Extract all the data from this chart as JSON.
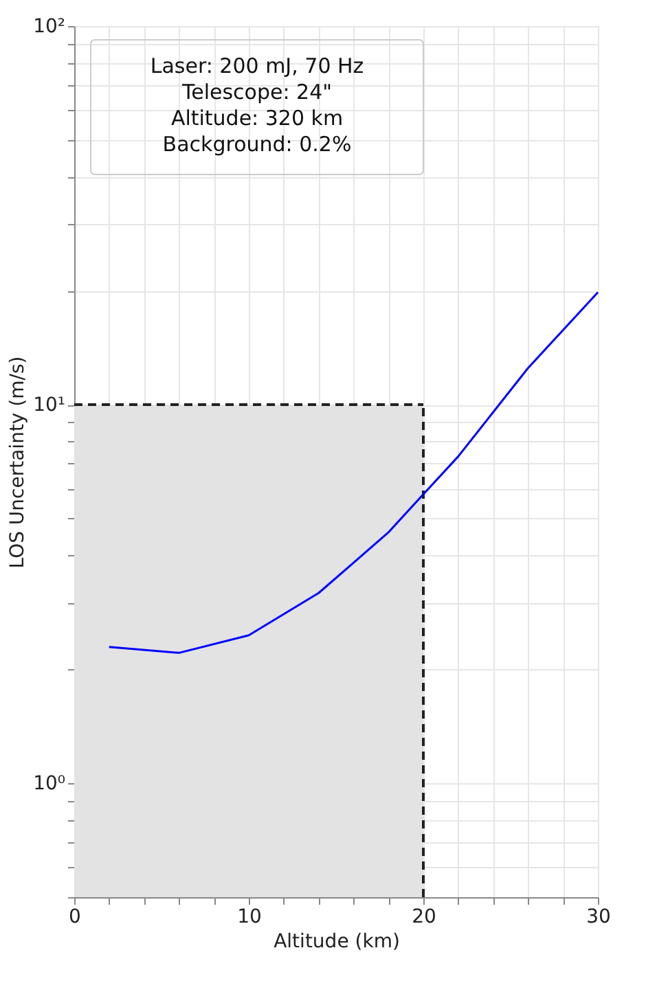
{
  "chart_data": {
    "type": "line",
    "xlabel": "Altitude (km)",
    "ylabel": "LOS Uncertainty (m/s)",
    "x": [
      2,
      6,
      10,
      14,
      18,
      20,
      22,
      26,
      30
    ],
    "series": [
      {
        "color": "#0000ff",
        "values": [
          2.29,
          2.21,
          2.46,
          3.18,
          4.6,
          5.8,
          7.3,
          12.5,
          19.8
        ]
      }
    ],
    "log": "y",
    "xlim": [
      0,
      30
    ],
    "ylim": [
      0.5,
      100
    ],
    "xticks": [
      0,
      {
        "value": 2,
        "label": null
      },
      {
        "value": 4,
        "label": null
      },
      {
        "value": 6,
        "label": null
      },
      {
        "value": 8,
        "label": null
      },
      10,
      {
        "value": 12,
        "label": null
      },
      {
        "value": 14,
        "label": null
      },
      {
        "value": 16,
        "label": null
      },
      {
        "value": 18,
        "label": null
      },
      20,
      {
        "value": 22,
        "label": null
      },
      {
        "value": 24,
        "label": null
      },
      {
        "value": 26,
        "label": null
      },
      {
        "value": 28,
        "label": null
      },
      30
    ],
    "yticks": [
      {
        "value": 0.5,
        "label": null
      },
      {
        "value": 0.6,
        "label": null
      },
      {
        "value": 0.7,
        "label": null
      },
      {
        "value": 0.8,
        "label": null
      },
      {
        "value": 0.9,
        "label": null
      },
      {
        "value": 1,
        "label": "10⁰"
      },
      {
        "value": 2,
        "label": null
      },
      {
        "value": 3,
        "label": null
      },
      {
        "value": 4,
        "label": null
      },
      {
        "value": 5,
        "label": null
      },
      {
        "value": 6,
        "label": null
      },
      {
        "value": 7,
        "label": null
      },
      {
        "value": 8,
        "label": null
      },
      {
        "value": 9,
        "label": null
      },
      {
        "value": 10,
        "label": "10¹"
      },
      {
        "value": 20,
        "label": null
      },
      {
        "value": 30,
        "label": null
      },
      {
        "value": 40,
        "label": null
      },
      {
        "value": 50,
        "label": null
      },
      {
        "value": 60,
        "label": null
      },
      {
        "value": 70,
        "label": null
      },
      {
        "value": 80,
        "label": null
      },
      {
        "value": 90,
        "label": null
      },
      {
        "value": 100,
        "label": "10²"
      }
    ],
    "grid": true,
    "bands": [
      {
        "axis": "x",
        "from": 0,
        "to": 20,
        "color": "#e3e3e3"
      }
    ],
    "ref_lines": [
      {
        "axis": "y",
        "value": 10,
        "color": "#222222",
        "line_style": "dashed"
      },
      {
        "axis": "x",
        "value": 20,
        "color": "#222222",
        "line_style": "dashed"
      }
    ],
    "annotations": [
      "Laser: 200 mJ, 70 Hz",
      "Telescope: 24\"",
      "Altitude: 320 km",
      "Background: 0.2%"
    ]
  }
}
